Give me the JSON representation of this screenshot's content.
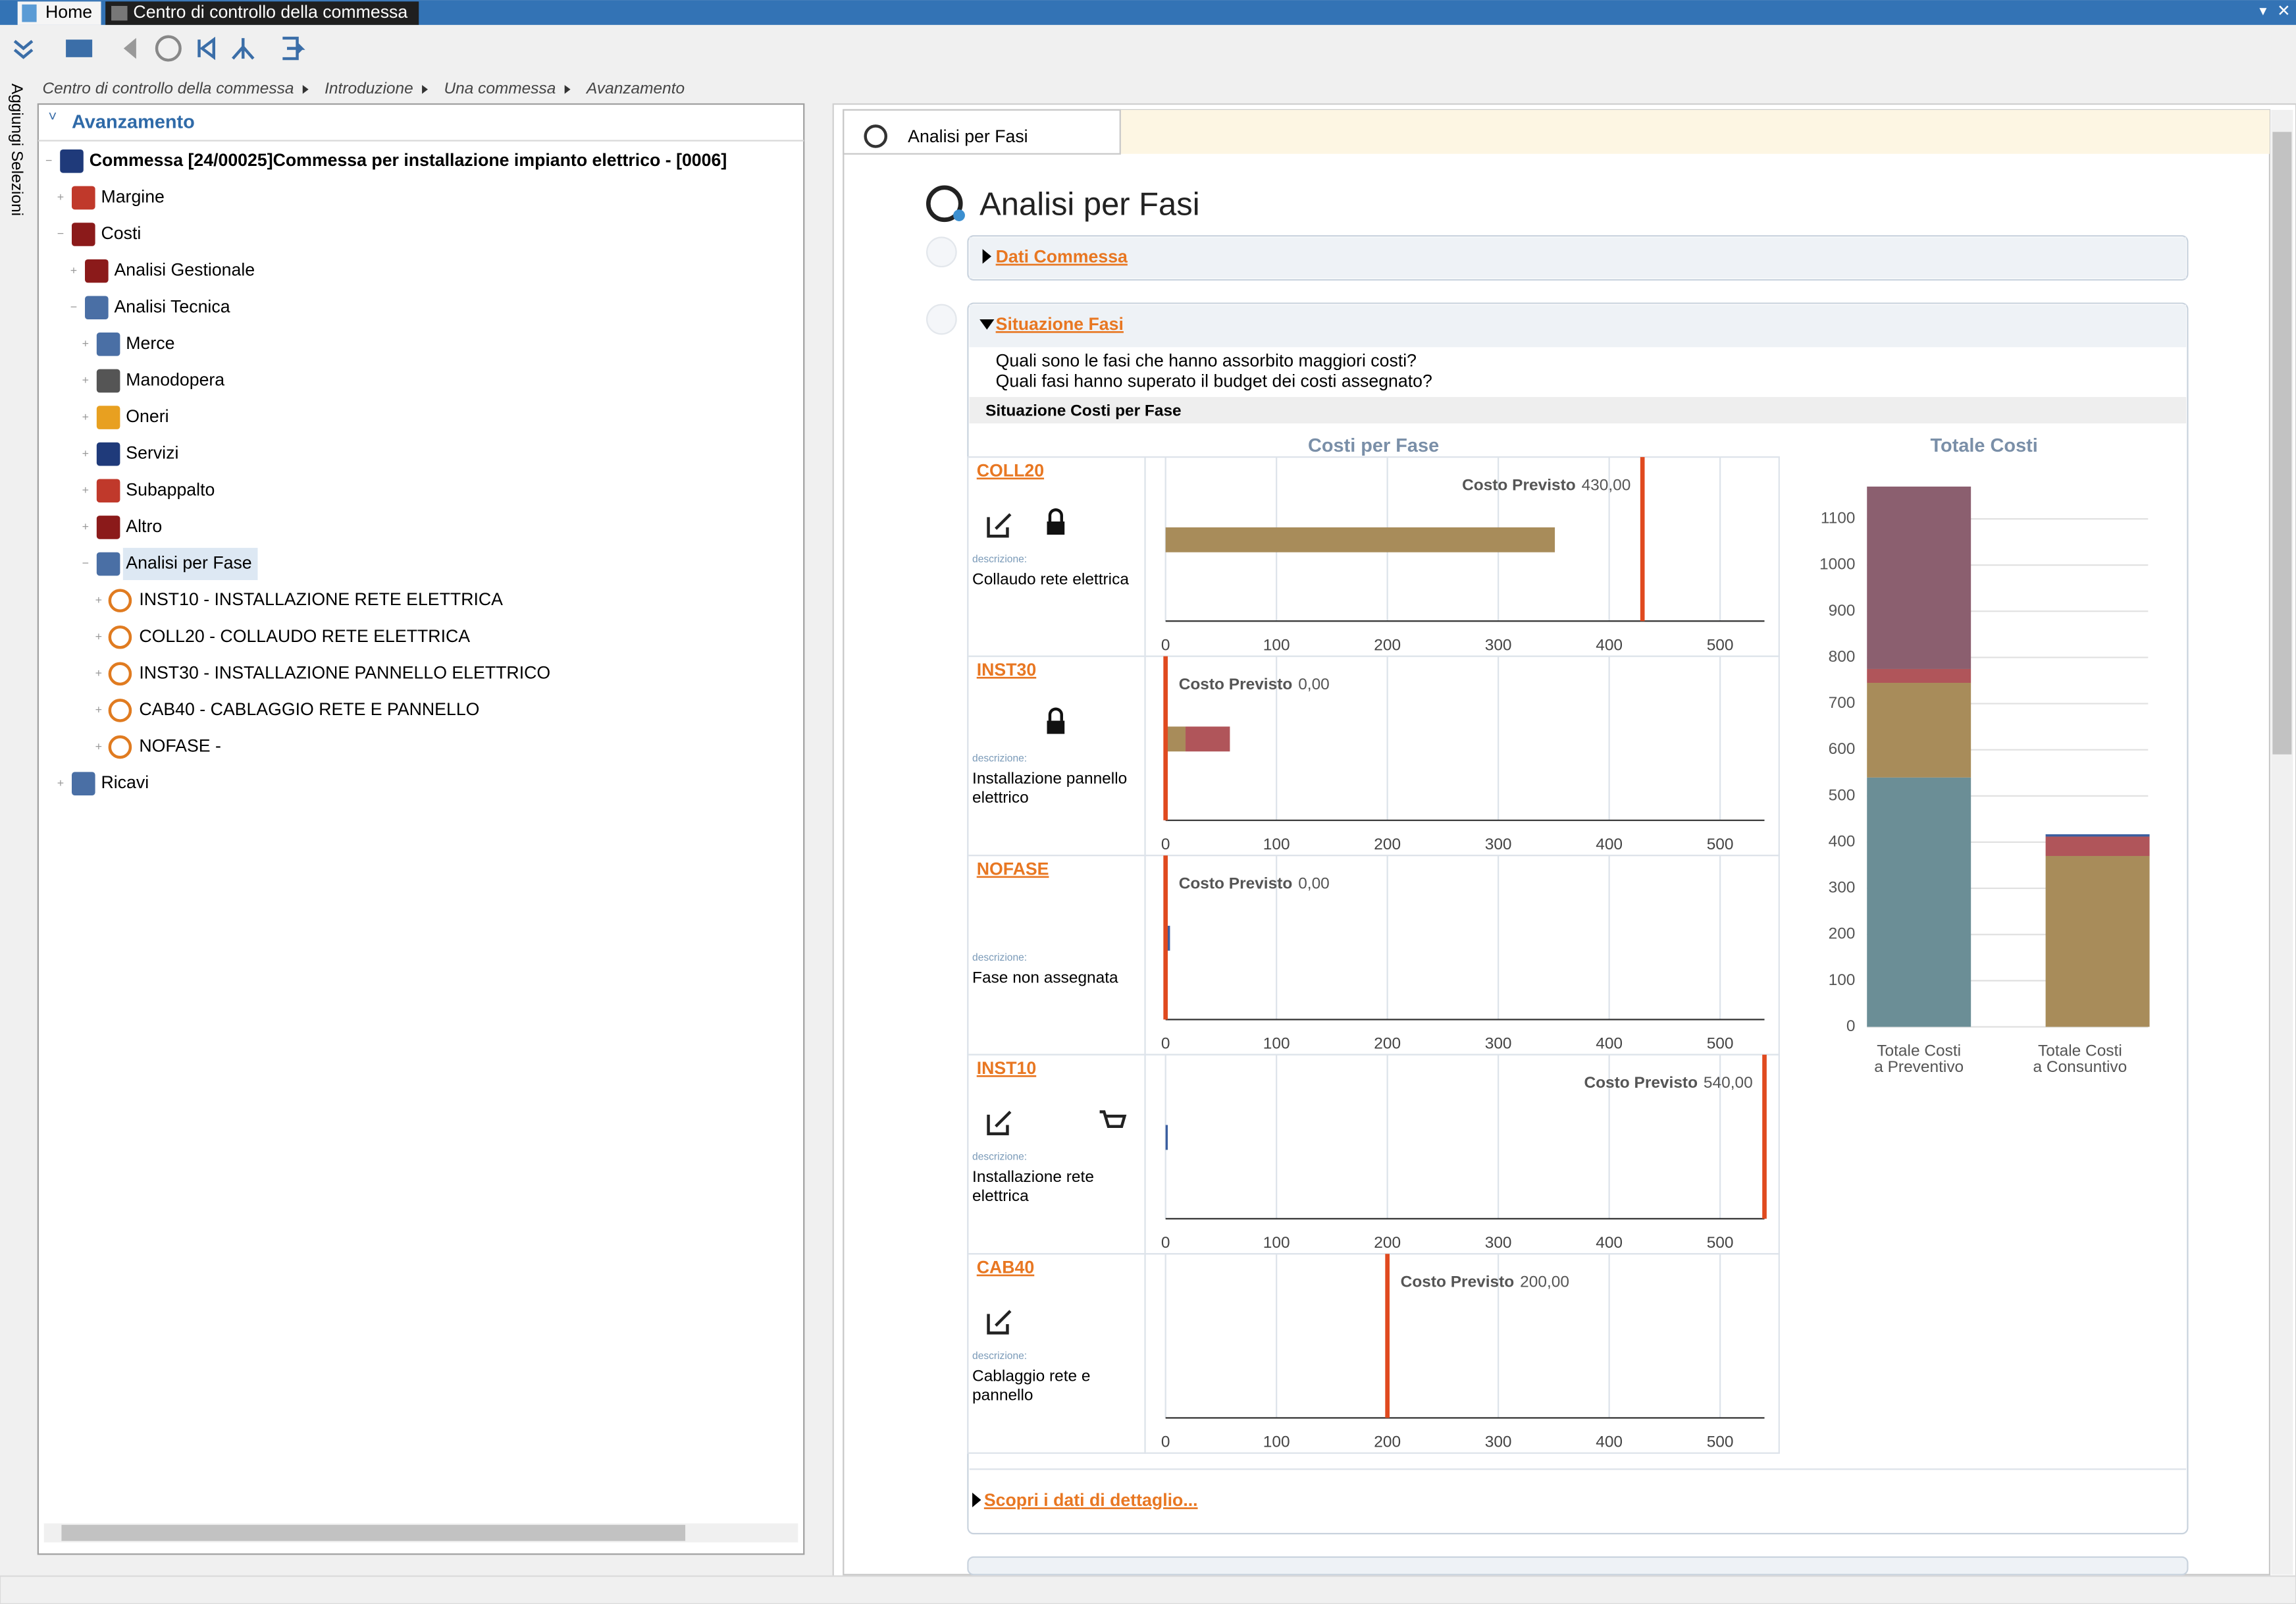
{
  "window": {
    "tabs": [
      "Home",
      "Centro di controllo della commessa"
    ]
  },
  "breadcrumb": [
    "Centro di controllo della commessa",
    "Introduzione",
    "Una commessa",
    "Avanzamento"
  ],
  "side_tab": "Aggiungi Selezioni",
  "tree": {
    "title": "Avanzamento",
    "nodes": [
      {
        "label": "Commessa [24/00025]Commessa per installazione impianto elettrico - [0006]",
        "children": [
          {
            "label": "Margine"
          },
          {
            "label": "Costi",
            "children": [
              {
                "label": "Analisi Gestionale"
              },
              {
                "label": "Analisi Tecnica",
                "children": [
                  {
                    "label": "Merce"
                  },
                  {
                    "label": "Manodopera"
                  },
                  {
                    "label": "Oneri"
                  },
                  {
                    "label": "Servizi"
                  },
                  {
                    "label": "Subappalto"
                  },
                  {
                    "label": "Altro"
                  },
                  {
                    "label": "Analisi per Fase",
                    "selected": true,
                    "children": [
                      {
                        "label": "INST10 - INSTALLAZIONE RETE ELETTRICA"
                      },
                      {
                        "label": "COLL20 - COLLAUDO RETE ELETTRICA"
                      },
                      {
                        "label": "INST30 - INSTALLAZIONE PANNELLO ELETTRICO"
                      },
                      {
                        "label": "CAB40 - CABLAGGIO RETE E PANNELLO"
                      },
                      {
                        "label": "NOFASE -"
                      }
                    ]
                  }
                ]
              }
            ]
          },
          {
            "label": "Ricavi"
          }
        ]
      }
    ]
  },
  "panel": {
    "tab": "Analisi per Fasi",
    "title": "Analisi per Fasi",
    "dati_commessa": "Dati Commessa",
    "situazione_fasi": {
      "title": "Situazione Fasi",
      "questions": [
        "Quali sono le fasi che hanno assorbito maggiori costi?",
        "Quali fasi hanno superato il budget dei costi assegnato?"
      ],
      "subtitle": "Situazione Costi per Fase",
      "costi_per_fase": {
        "type": "bar",
        "title": "Costi per Fase",
        "description_label": "descrizione:",
        "target_label": "Costo Previsto",
        "xlim": [
          0,
          540
        ],
        "xticks": [
          0,
          100,
          200,
          300,
          400,
          500
        ],
        "grid": true,
        "phases": [
          {
            "code": "COLL20",
            "description": [
              "Collaudo rete elettrica"
            ],
            "target": 430,
            "target_value_label": "430,00",
            "segments": [
              {
                "value": 351,
                "color": "#a88c5a"
              }
            ]
          },
          {
            "code": "INST30",
            "description": [
              "Installazione pannello",
              "elettrico"
            ],
            "target": 0,
            "target_value_label": "0,00",
            "segments": [
              {
                "value": 18,
                "color": "#a88c5a"
              },
              {
                "value": 40,
                "color": "#b0555a"
              }
            ]
          },
          {
            "code": "NOFASE",
            "description": [
              "Fase non assegnata"
            ],
            "target": 0,
            "target_value_label": "0,00",
            "segments": [
              {
                "value": 4,
                "color": "#3b5fa0"
              }
            ]
          },
          {
            "code": "INST10",
            "description": [
              "Installazione rete",
              "elettrica"
            ],
            "target": 540,
            "target_value_label": "540,00",
            "segments": [
              {
                "value": 2,
                "color": "#3b5fa0"
              }
            ]
          },
          {
            "code": "CAB40",
            "description": [
              "Cablaggio rete e",
              "pannello"
            ],
            "target": 200,
            "target_value_label": "200,00",
            "segments": []
          }
        ]
      },
      "totale_costi": {
        "type": "bar",
        "stacked": true,
        "title": "Totale Costi",
        "categories": [
          [
            "Totale Costi",
            "a Preventivo"
          ],
          [
            "Totale Costi",
            "a Consuntivo"
          ]
        ],
        "ylim": [
          0,
          1180
        ],
        "yticks": [
          0,
          100,
          200,
          300,
          400,
          500,
          600,
          700,
          800,
          900,
          1000,
          1100
        ],
        "grid": true,
        "series": [
          {
            "color": "#6b8e96",
            "values": [
              540,
              0
            ]
          },
          {
            "color": "#a88c5a",
            "values": [
              205,
              370
            ]
          },
          {
            "color": "#b0555a",
            "values": [
              30,
              42
            ]
          },
          {
            "color": "#8b5f6f",
            "values": [
              395,
              0
            ]
          },
          {
            "color": "#3b5fa0",
            "values": [
              0,
              5
            ]
          }
        ]
      },
      "detail_link": "Scopri i dati di dettaglio..."
    }
  }
}
